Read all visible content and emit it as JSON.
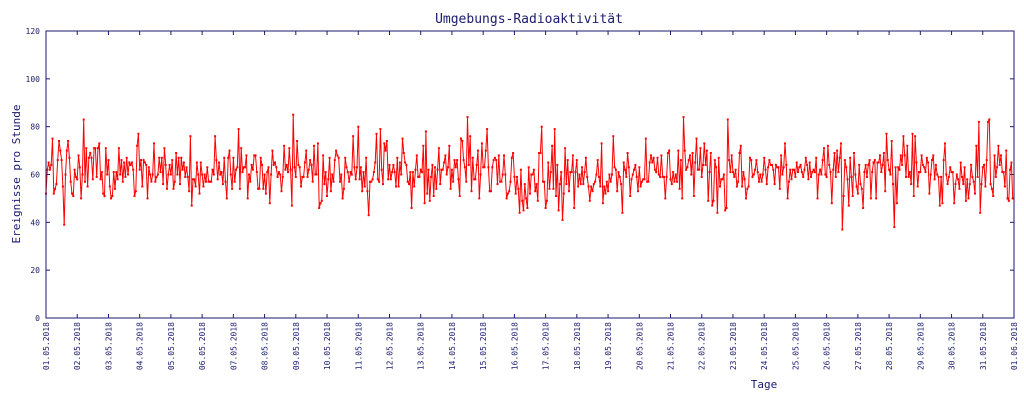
{
  "chart_data": {
    "type": "line",
    "title": "Umgebungs-Radioaktivität",
    "xlabel": "Tage",
    "ylabel": "Ereignisse pro Stunde",
    "ylim": [
      0,
      120
    ],
    "yticks": [
      0,
      20,
      40,
      60,
      80,
      100,
      120
    ],
    "xticks": [
      "01.05.2018",
      "02.05.2018",
      "03.05.2018",
      "04.05.2018",
      "05.05.2018",
      "06.05.2018",
      "07.05.2018",
      "08.05.2018",
      "09.05.2018",
      "10.05.2018",
      "11.05.2018",
      "12.05.2018",
      "13.05.2018",
      "14.05.2018",
      "15.05.2018",
      "16.05.2018",
      "17.05.2018",
      "18.05.2018",
      "19.05.2018",
      "20.05.2018",
      "21.05.2018",
      "22.05.2018",
      "23.05.2018",
      "24.05.2018",
      "25.05.2018",
      "26.05.2018",
      "27.05.2018",
      "28.05.2018",
      "29.05.2018",
      "30.05.2018",
      "31.05.2018",
      "01.06.2018"
    ],
    "grid": false,
    "legend": "none",
    "line_color": "#ff0000",
    "axis_color": "#1a1a6e",
    "series": [
      {
        "daily_summary": [
          {
            "date": "01.05.2018",
            "mean": 61,
            "min": 39,
            "max": 75
          },
          {
            "date": "02.05.2018",
            "mean": 63,
            "min": 50,
            "max": 83
          },
          {
            "date": "03.05.2018",
            "mean": 62,
            "min": 50,
            "max": 77
          },
          {
            "date": "04.05.2018",
            "mean": 62,
            "min": 50,
            "max": 73
          },
          {
            "date": "05.05.2018",
            "mean": 62,
            "min": 47,
            "max": 76
          },
          {
            "date": "06.05.2018",
            "mean": 61,
            "min": 50,
            "max": 76
          },
          {
            "date": "07.05.2018",
            "mean": 62,
            "min": 50,
            "max": 79
          },
          {
            "date": "08.05.2018",
            "mean": 62,
            "min": 47,
            "max": 85
          },
          {
            "date": "09.05.2018",
            "mean": 62,
            "min": 46,
            "max": 74
          },
          {
            "date": "10.05.2018",
            "mean": 62,
            "min": 50,
            "max": 76
          },
          {
            "date": "11.05.2018",
            "mean": 61,
            "min": 43,
            "max": 80
          },
          {
            "date": "12.05.2018",
            "mean": 61,
            "min": 46,
            "max": 75
          },
          {
            "date": "13.05.2018",
            "mean": 62,
            "min": 48,
            "max": 78
          },
          {
            "date": "14.05.2018",
            "mean": 62,
            "min": 50,
            "max": 84
          },
          {
            "date": "15.05.2018",
            "mean": 62,
            "min": 50,
            "max": 79
          },
          {
            "date": "16.05.2018",
            "mean": 61,
            "min": 44,
            "max": 80
          },
          {
            "date": "17.05.2018",
            "mean": 59,
            "min": 41,
            "max": 79
          },
          {
            "date": "18.05.2018",
            "mean": 59,
            "min": 48,
            "max": 73
          },
          {
            "date": "19.05.2018",
            "mean": 62,
            "min": 44,
            "max": 76
          },
          {
            "date": "20.05.2018",
            "mean": 61,
            "min": 50,
            "max": 75
          },
          {
            "date": "21.05.2018",
            "mean": 64,
            "min": 50,
            "max": 84
          },
          {
            "date": "22.05.2018",
            "mean": 61,
            "min": 44,
            "max": 83
          },
          {
            "date": "23.05.2018",
            "mean": 61,
            "min": 50,
            "max": 72
          },
          {
            "date": "24.05.2018",
            "mean": 61,
            "min": 50,
            "max": 73
          },
          {
            "date": "25.05.2018",
            "mean": 62,
            "min": 50,
            "max": 71
          },
          {
            "date": "26.05.2018",
            "mean": 58,
            "min": 37,
            "max": 73
          },
          {
            "date": "27.05.2018",
            "mean": 60,
            "min": 46,
            "max": 77
          },
          {
            "date": "28.05.2018",
            "mean": 62,
            "min": 38,
            "max": 77
          },
          {
            "date": "29.05.2018",
            "mean": 60,
            "min": 47,
            "max": 73
          },
          {
            "date": "30.05.2018",
            "mean": 61,
            "min": 44,
            "max": 82
          },
          {
            "date": "31.05.2018",
            "mean": 62,
            "min": 49,
            "max": 83
          }
        ]
      }
    ]
  }
}
